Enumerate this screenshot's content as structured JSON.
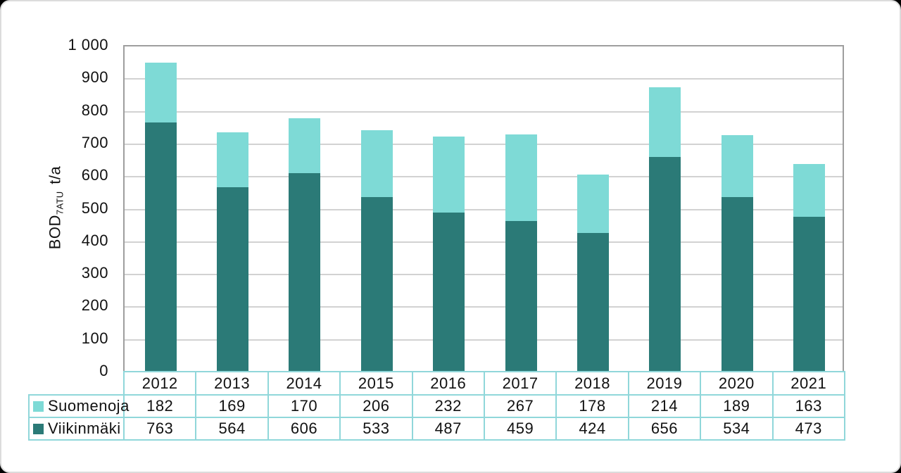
{
  "chart_data": {
    "type": "bar",
    "stacked": true,
    "title": "",
    "ylabel": {
      "main": "BOD",
      "sub": "7ATU",
      "unit": "t/a",
      "full_text": "BOD7ATU t/a"
    },
    "categories": [
      "2012",
      "2013",
      "2014",
      "2015",
      "2016",
      "2017",
      "2018",
      "2019",
      "2020",
      "2021"
    ],
    "series": [
      {
        "name": "Suomenoja",
        "color": "#7EDAD6",
        "stack_position": "top",
        "values": [
          182,
          169,
          170,
          206,
          232,
          267,
          178,
          214,
          189,
          163
        ]
      },
      {
        "name": "Viikinmäki",
        "color": "#2B7A77",
        "stack_position": "bottom",
        "values": [
          763,
          564,
          606,
          533,
          487,
          459,
          424,
          656,
          534,
          473
        ]
      }
    ],
    "ylim": [
      0,
      1000
    ],
    "ytick_step": 100,
    "ytick_labels_top_to_bottom": [
      "1 000",
      "900",
      "800",
      "700",
      "600",
      "500",
      "400",
      "300",
      "200",
      "100",
      "0"
    ],
    "grid": true,
    "legend_position": "table-rows-left"
  },
  "colors": {
    "suomenoja": "#7EDAD6",
    "viikinmaki": "#2B7A77",
    "table_border": "#90D7DA",
    "gridline": "#D2D2D2",
    "plot_border": "#9E9E9E",
    "text": "#111111",
    "page_background": "#FFFFFF",
    "outer_background": "#000000"
  }
}
